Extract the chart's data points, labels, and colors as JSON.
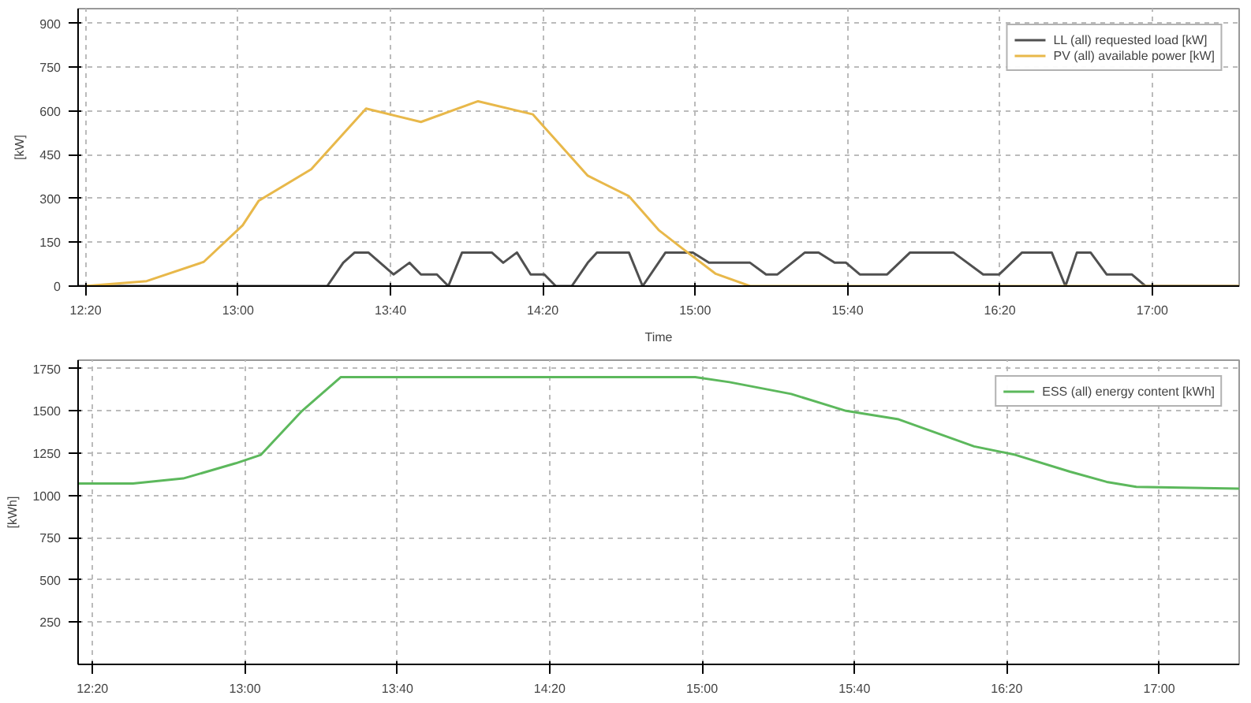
{
  "chart_data": [
    {
      "type": "line",
      "xlabel": "Time",
      "ylabel": "[kW]",
      "legend": "top right",
      "grid": true,
      "line_style": "solid",
      "xlim": [
        12.3,
        17.38
      ],
      "ylim": [
        0,
        950
      ],
      "xticks": [
        {
          "value": 12.333,
          "label": "12:20"
        },
        {
          "value": 13.0,
          "label": "13:00"
        },
        {
          "value": 13.667,
          "label": "13:40"
        },
        {
          "value": 14.333,
          "label": "14:20"
        },
        {
          "value": 15.0,
          "label": "15:00"
        },
        {
          "value": 15.667,
          "label": "15:40"
        },
        {
          "value": 16.333,
          "label": "16:20"
        },
        {
          "value": 17.0,
          "label": "17:00"
        }
      ],
      "yticks": [
        0,
        150,
        300,
        450,
        600,
        750,
        900
      ],
      "series": [
        {
          "name": "LL (all) requested load [kW]",
          "color": "#505050",
          "x": [
            12.3,
            13.39,
            13.46,
            13.51,
            13.57,
            13.68,
            13.75,
            13.8,
            13.87,
            13.92,
            13.98,
            14.11,
            14.16,
            14.22,
            14.28,
            14.34,
            14.39,
            14.46,
            14.53,
            14.57,
            14.71,
            14.77,
            14.87,
            14.99,
            15.06,
            15.24,
            15.31,
            15.36,
            15.48,
            15.54,
            15.61,
            15.66,
            15.72,
            15.84,
            15.94,
            16.13,
            16.26,
            16.33,
            16.43,
            16.56,
            16.62,
            16.67,
            16.73,
            16.8,
            16.91,
            16.97,
            17.38
          ],
          "values": [
            0,
            0,
            80,
            115,
            115,
            40,
            80,
            40,
            40,
            0,
            115,
            115,
            80,
            115,
            40,
            40,
            0,
            0,
            80,
            115,
            115,
            0,
            115,
            115,
            80,
            80,
            40,
            40,
            115,
            115,
            80,
            80,
            40,
            40,
            115,
            115,
            40,
            40,
            115,
            115,
            0,
            115,
            115,
            40,
            40,
            0,
            0
          ]
        },
        {
          "name": "PV (all) available power [kW]",
          "color": "#e8b84a",
          "x": [
            12.33,
            12.6,
            12.85,
            13.02,
            13.09,
            13.32,
            13.56,
            13.8,
            14.05,
            14.29,
            14.53,
            14.71,
            14.84,
            14.95,
            15.09,
            15.24,
            17.38
          ],
          "values": [
            0,
            17,
            83,
            208,
            292,
            400,
            608,
            562,
            633,
            588,
            378,
            308,
            192,
            125,
            42,
            0,
            0
          ]
        }
      ]
    },
    {
      "type": "line",
      "ylabel": "[kWh]",
      "legend": "top right",
      "grid": true,
      "line_style": "solid",
      "xlim": [
        12.27,
        17.35
      ],
      "ylim": [
        0,
        1800
      ],
      "xticks": [
        {
          "value": 12.333,
          "label": "12:20"
        },
        {
          "value": 13.0,
          "label": "13:00"
        },
        {
          "value": 13.667,
          "label": "13:40"
        },
        {
          "value": 14.333,
          "label": "14:20"
        },
        {
          "value": 15.0,
          "label": "15:00"
        },
        {
          "value": 15.667,
          "label": "15:40"
        },
        {
          "value": 16.333,
          "label": "16:20"
        },
        {
          "value": 17.0,
          "label": "17:00"
        }
      ],
      "yticks": [
        250,
        500,
        750,
        1000,
        1250,
        1500,
        1750
      ],
      "series": [
        {
          "name": "ESS (all) energy content [kWh]",
          "color": "#5cb85c",
          "x": [
            12.27,
            12.51,
            12.73,
            12.96,
            13.07,
            13.25,
            13.42,
            14.97,
            15.12,
            15.39,
            15.63,
            15.86,
            16.19,
            16.37,
            16.61,
            16.77,
            16.9,
            17.35
          ],
          "values": [
            1070,
            1070,
            1100,
            1190,
            1240,
            1500,
            1700,
            1700,
            1670,
            1600,
            1500,
            1450,
            1290,
            1240,
            1140,
            1080,
            1050,
            1040
          ]
        }
      ]
    }
  ]
}
